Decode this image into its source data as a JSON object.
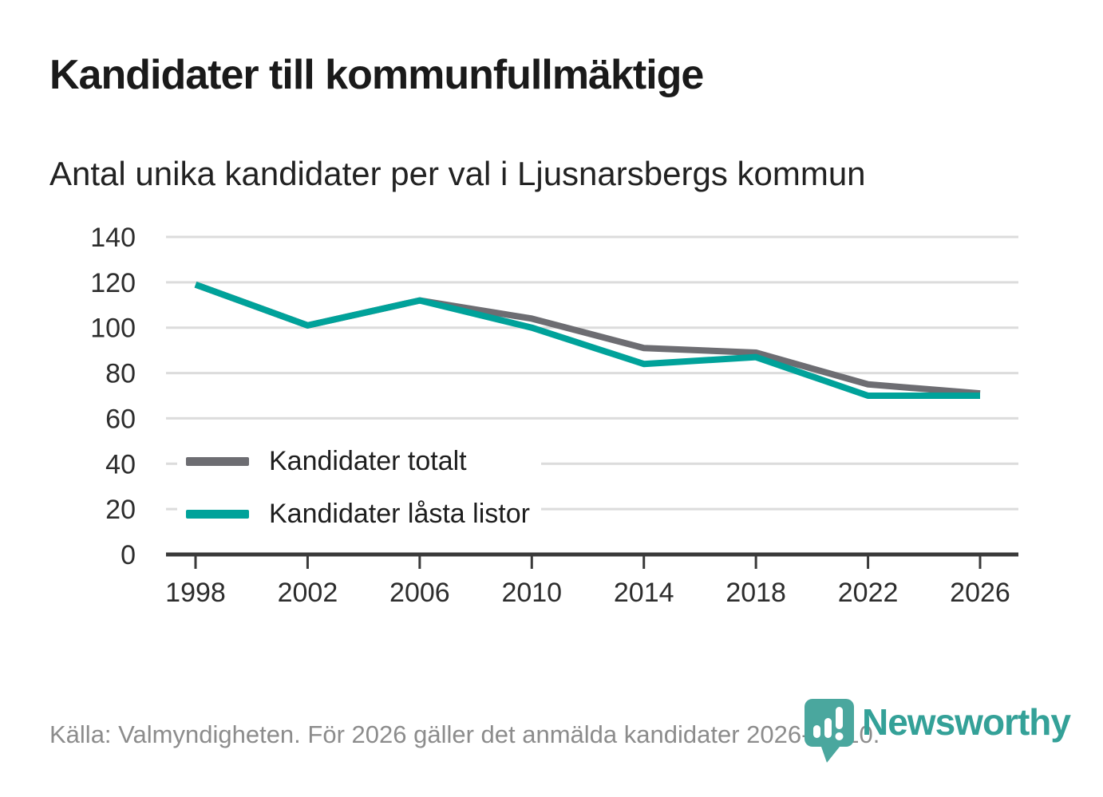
{
  "header": {
    "title": "Kandidater till kommunfullmäktige",
    "subtitle": "Antal unika kandidater per val i Ljusnarsbergs kommun"
  },
  "chart_data": {
    "type": "line",
    "title": "Kandidater till kommunfullmäktige",
    "subtitle": "Antal unika kandidater per val i Ljusnarsbergs kommun",
    "categories": [
      "1998",
      "2002",
      "2006",
      "2010",
      "2014",
      "2018",
      "2022",
      "2026"
    ],
    "series": [
      {
        "name": "Kandidater totalt",
        "color": "#6d6d72",
        "values": [
          119,
          101,
          112,
          104,
          91,
          89,
          75,
          71
        ]
      },
      {
        "name": "Kandidater låsta listor",
        "color": "#00a29a",
        "values": [
          119,
          101,
          112,
          100,
          84,
          87,
          70,
          70
        ]
      }
    ],
    "xlabel": "",
    "ylabel": "",
    "ylim": [
      0,
      140
    ],
    "y_ticks": [
      0,
      20,
      40,
      60,
      80,
      100,
      120,
      140
    ],
    "grid": "horizontal",
    "legend_position": "inside-left-bottom"
  },
  "footer": {
    "source": "Källa: Valmyndigheten. För 2026 gäller det anmälda kandidater 2026-04-10."
  },
  "logo": {
    "brand": "Newsworthy",
    "badge_icon": "bar-chart-exclamation-pin"
  },
  "colors": {
    "grid": "#dcdcdc",
    "axis": "#3a3a3a",
    "tick_label": "#2d2d2d",
    "series_total": "#6d6d72",
    "series_locked": "#00a29a",
    "brand_badge": "#4aa79e",
    "brand_text": "#34a198"
  }
}
